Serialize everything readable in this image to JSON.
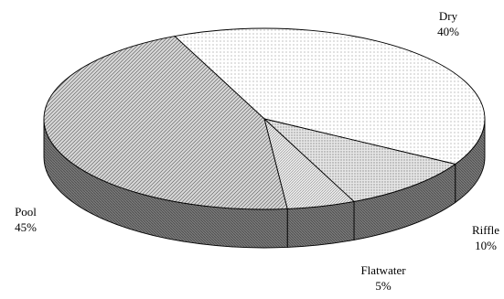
{
  "chart_data": {
    "type": "pie",
    "style": "3d-exploded-none",
    "slices": [
      {
        "label": "Dry",
        "value": 40,
        "value_label": "40%"
      },
      {
        "label": "Riffle",
        "value": 10,
        "value_label": "10%"
      },
      {
        "label": "Flatwater",
        "value": 5,
        "value_label": "5%"
      },
      {
        "label": "Pool",
        "value": 45,
        "value_label": "45%"
      }
    ]
  }
}
